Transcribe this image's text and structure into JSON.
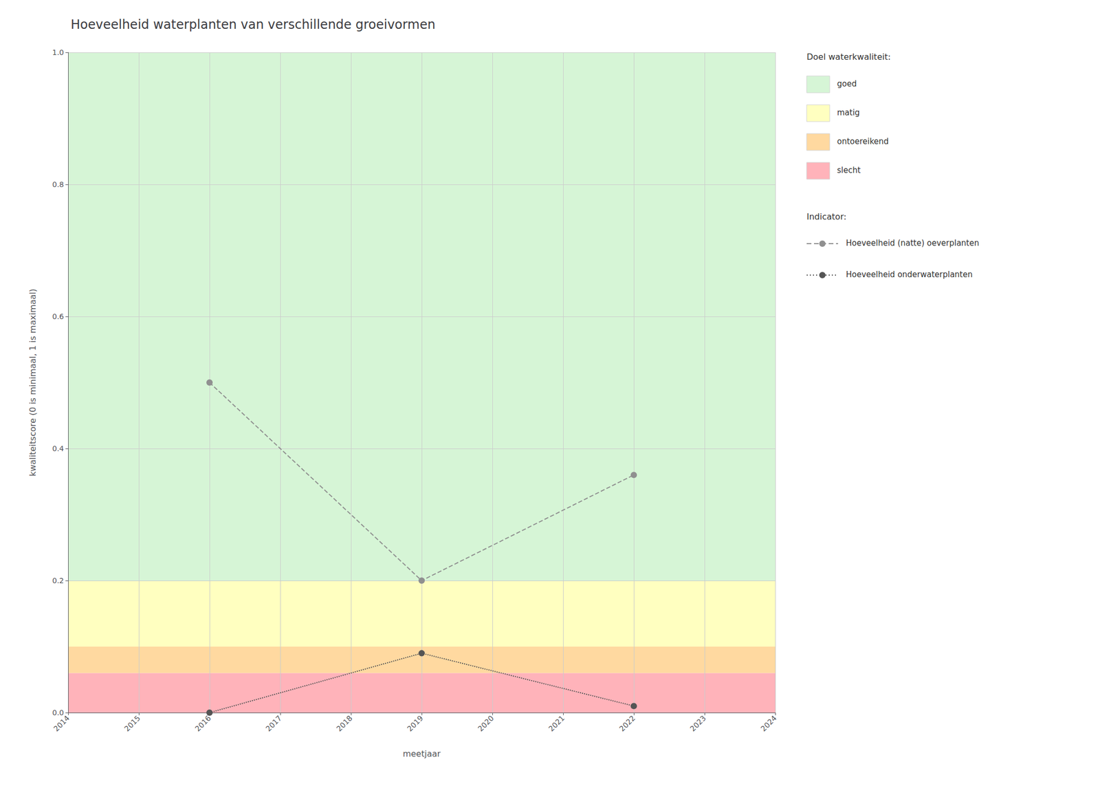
{
  "chart_data": {
    "type": "line",
    "title": "Hoeveelheid waterplanten van verschillende groeivormen",
    "x_label": "meetjaar",
    "y_label": "kwaliteitscore (0 is minimaal, 1 is maximaal)",
    "xlim": [
      2014,
      2024
    ],
    "ylim": [
      0,
      1.0
    ],
    "xticks": [
      2014,
      2015,
      2016,
      2017,
      2018,
      2019,
      2020,
      2021,
      2022,
      2023,
      2024
    ],
    "yticks": [
      {
        "value": 0.0,
        "label": "0.0"
      },
      0.2,
      0.4,
      0.6,
      0.8,
      {
        "value": 1.0,
        "label": "1.0"
      }
    ],
    "grid": true,
    "legend": "right",
    "bands_title": "Doel waterkwaliteit:",
    "bands": [
      {
        "name": "goed",
        "ymin": 0.2,
        "ymax": 1.0,
        "color": "#d6f5d6"
      },
      {
        "name": "matig",
        "ymin": 0.1,
        "ymax": 0.2,
        "color": "#ffffc0"
      },
      {
        "name": "ontoereikend",
        "ymin": 0.06,
        "ymax": 0.1,
        "color": "#ffd9a0"
      },
      {
        "name": "slecht",
        "ymin": 0.0,
        "ymax": 0.06,
        "color": "#ffb3ba"
      }
    ],
    "legend_title": "Indicator:",
    "series": [
      {
        "name": "Hoeveelheid (natte) oeverplanten",
        "color": "#909090",
        "line_style": "dashed",
        "marker": "circle",
        "x": [
          2016,
          2019,
          2022
        ],
        "values": [
          0.5,
          0.2,
          0.36
        ]
      },
      {
        "name": "Hoeveelheid onderwaterplanten",
        "color": "#555555",
        "line_style": "dotted",
        "marker": "circle",
        "x": [
          2016,
          2019,
          2022
        ],
        "values": [
          0.0,
          0.09,
          0.01
        ]
      }
    ]
  }
}
